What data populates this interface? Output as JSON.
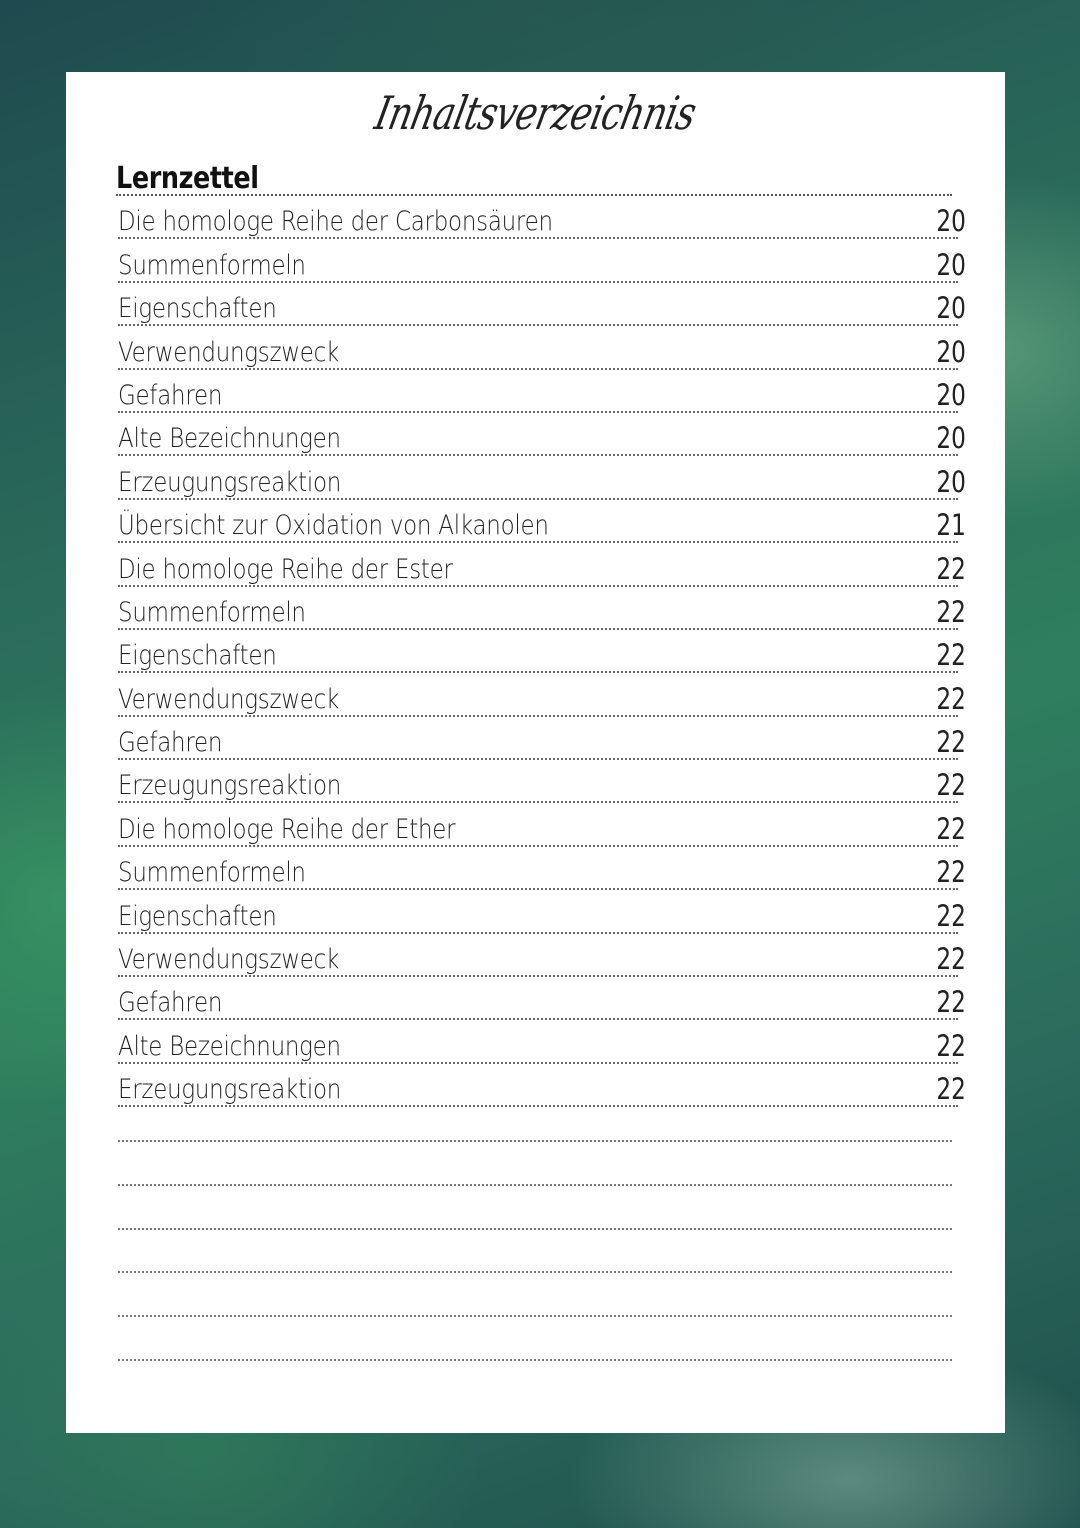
{
  "title": "Inhaltsverzeichnis",
  "section_heading": "Lernzettel",
  "entries": [
    {
      "label": "Die homologe Reihe der Carbonsäuren",
      "page": "20"
    },
    {
      "label": "Summenformeln",
      "page": "20"
    },
    {
      "label": "Eigenschaften",
      "page": "20"
    },
    {
      "label": "Verwendungszweck",
      "page": "20"
    },
    {
      "label": "Gefahren",
      "page": "20"
    },
    {
      "label": "Alte Bezeichnungen",
      "page": "20"
    },
    {
      "label": "Erzeugungsreaktion",
      "page": "20"
    },
    {
      "label": "Übersicht zur Oxidation von Alkanolen",
      "page": "21"
    },
    {
      "label": "Die homologe Reihe der Ester",
      "page": "22"
    },
    {
      "label": "Summenformeln",
      "page": "22"
    },
    {
      "label": "Eigenschaften",
      "page": "22"
    },
    {
      "label": "Verwendungszweck",
      "page": "22"
    },
    {
      "label": "Gefahren",
      "page": "22"
    },
    {
      "label": "Erzeugungsreaktion",
      "page": "22"
    },
    {
      "label": "Die homologe Reihe der Ether",
      "page": "22"
    },
    {
      "label": "Summenformeln",
      "page": "22"
    },
    {
      "label": "Eigenschaften",
      "page": "22"
    },
    {
      "label": "Verwendungszweck",
      "page": "22"
    },
    {
      "label": "Gefahren",
      "page": "22"
    },
    {
      "label": "Alte Bezeichnungen",
      "page": "22"
    },
    {
      "label": "Erzeugungsreaktion",
      "page": "22"
    }
  ],
  "colors": {
    "background": "#2a6a5a",
    "paper": "#ffffff",
    "text": "#222222"
  }
}
